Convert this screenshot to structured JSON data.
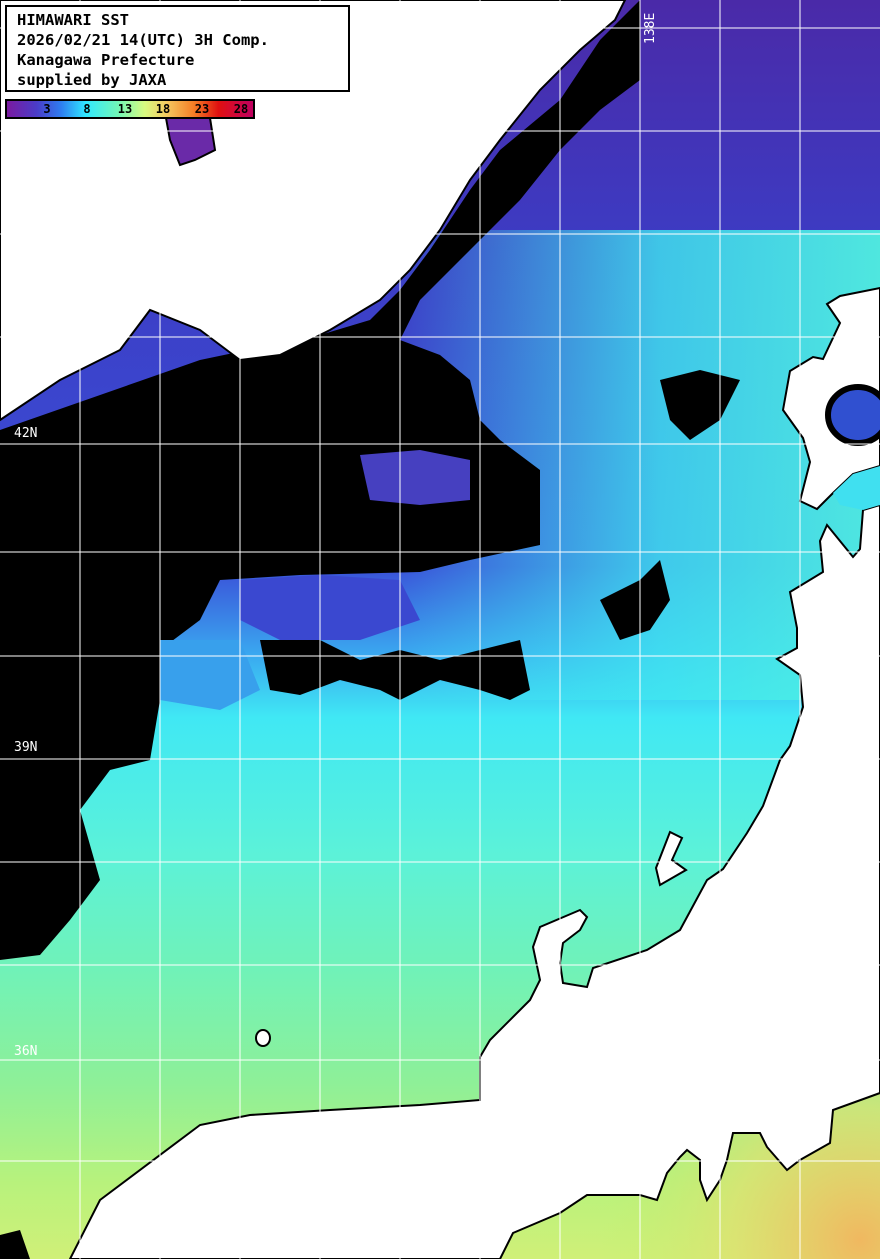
{
  "info_box": {
    "title": "HIMAWARI SST",
    "datetime": "2026/02/21 14(UTC) 3H Comp.",
    "organization": "Kanagawa Prefecture",
    "credit": "supplied by JAXA"
  },
  "legend": {
    "unit_ticks": [
      "3",
      "8",
      "13",
      "18",
      "23",
      "28"
    ],
    "colors": [
      "#7a1aa0",
      "#2e7df0",
      "#30e8ff",
      "#70f7b8",
      "#d8fa80",
      "#f5c860",
      "#f57d25",
      "#e01010",
      "#c00060"
    ]
  },
  "grid_labels": {
    "lat": [
      "42N",
      "39N",
      "36N"
    ],
    "lon": [
      "138E"
    ]
  },
  "colors": {
    "land": "#ffffff",
    "cloud": "#000000",
    "grid": "#ffffff"
  }
}
